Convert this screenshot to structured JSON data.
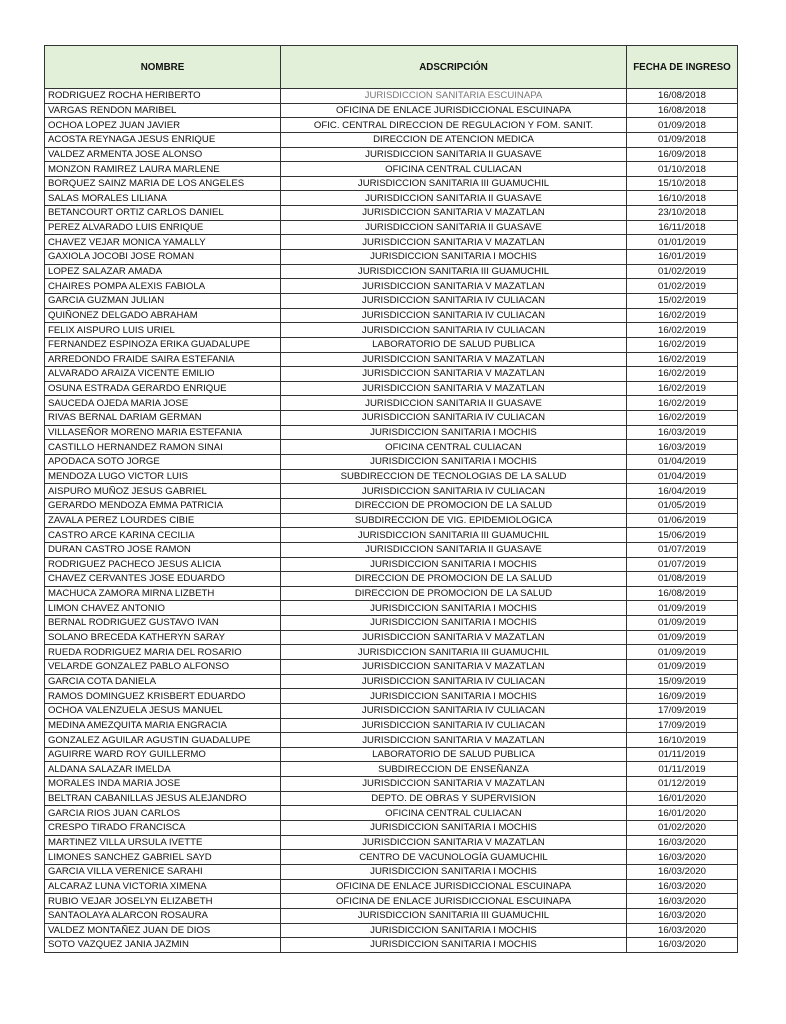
{
  "headers": {
    "nombre": "NOMBRE",
    "adscripcion": "ADSCRIPCIÓN",
    "fecha": "FECHA DE INGRESO"
  },
  "rows": [
    [
      "RODRIGUEZ ROCHA HERIBERTO",
      "JURISDICCION SANITARIA ESCUINAPA",
      "16/08/2018"
    ],
    [
      "VARGAS RENDON MARIBEL",
      "OFICINA DE ENLACE JURISDICCIONAL ESCUINAPA",
      "16/08/2018"
    ],
    [
      "OCHOA LOPEZ JUAN JAVIER",
      "OFIC. CENTRAL DIRECCION DE REGULACION Y FOM. SANIT.",
      "01/09/2018"
    ],
    [
      "ACOSTA REYNAGA JESUS ENRIQUE",
      "DIRECCION DE ATENCION MEDICA",
      "01/09/2018"
    ],
    [
      "VALDEZ ARMENTA JOSE ALONSO",
      "JURISDICCION SANITARIA II GUASAVE",
      "16/09/2018"
    ],
    [
      "MONZON RAMIREZ LAURA MARLENE",
      "OFICINA CENTRAL CULIACAN",
      "01/10/2018"
    ],
    [
      "BORQUEZ SAINZ MARIA DE LOS ANGELES",
      "JURISDICCION SANITARIA III GUAMUCHIL",
      "15/10/2018"
    ],
    [
      "SALAS MORALES LILIANA",
      "JURISDICCION SANITARIA II GUASAVE",
      "16/10/2018"
    ],
    [
      "BETANCOURT ORTIZ CARLOS DANIEL",
      "JURISDICCION SANITARIA V MAZATLAN",
      "23/10/2018"
    ],
    [
      "PEREZ ALVARADO LUIS ENRIQUE",
      "JURISDICCION SANITARIA II GUASAVE",
      "16/11/2018"
    ],
    [
      "CHAVEZ VEJAR MONICA YAMALLY",
      "JURISDICCION SANITARIA V MAZATLAN",
      "01/01/2019"
    ],
    [
      "GAXIOLA JOCOBI JOSE ROMAN",
      "JURISDICCION SANITARIA I MOCHIS",
      "16/01/2019"
    ],
    [
      "LOPEZ SALAZAR AMADA",
      "JURISDICCION SANITARIA III GUAMUCHIL",
      "01/02/2019"
    ],
    [
      "CHAIRES POMPA ALEXIS FABIOLA",
      "JURISDICCION SANITARIA V MAZATLAN",
      "01/02/2019"
    ],
    [
      "GARCIA GUZMAN JULIAN",
      "JURISDICCION SANITARIA IV CULIACAN",
      "15/02/2019"
    ],
    [
      "QUIÑONEZ DELGADO ABRAHAM",
      "JURISDICCION SANITARIA IV CULIACAN",
      "16/02/2019"
    ],
    [
      "FELIX AISPURO LUIS URIEL",
      "JURISDICCION SANITARIA IV CULIACAN",
      "16/02/2019"
    ],
    [
      "FERNANDEZ ESPINOZA ERIKA GUADALUPE",
      "LABORATORIO DE SALUD PUBLICA",
      "16/02/2019"
    ],
    [
      "ARREDONDO FRAIDE SAIRA ESTEFANIA",
      "JURISDICCION SANITARIA V MAZATLAN",
      "16/02/2019"
    ],
    [
      "ALVARADO ARAIZA VICENTE EMILIO",
      "JURISDICCION SANITARIA V MAZATLAN",
      "16/02/2019"
    ],
    [
      "OSUNA ESTRADA GERARDO ENRIQUE",
      "JURISDICCION SANITARIA V MAZATLAN",
      "16/02/2019"
    ],
    [
      "SAUCEDA OJEDA MARIA JOSE",
      "JURISDICCION SANITARIA II GUASAVE",
      "16/02/2019"
    ],
    [
      "RIVAS BERNAL DARIAM GERMAN",
      "JURISDICCION SANITARIA IV CULIACAN",
      "16/02/2019"
    ],
    [
      "VILLASEÑOR MORENO MARIA ESTEFANIA",
      "JURISDICCION SANITARIA I MOCHIS",
      "16/03/2019"
    ],
    [
      "CASTILLO HERNANDEZ RAMON SINAI",
      "OFICINA CENTRAL CULIACAN",
      "16/03/2019"
    ],
    [
      "APODACA SOTO JORGE",
      "JURISDICCION SANITARIA I MOCHIS",
      "01/04/2019"
    ],
    [
      "MENDOZA LUGO VICTOR LUIS",
      "SUBDIRECCION DE TECNOLOGIAS DE LA SALUD",
      "01/04/2019"
    ],
    [
      "AISPURO MUÑOZ JESUS GABRIEL",
      "JURISDICCION SANITARIA IV CULIACAN",
      "16/04/2019"
    ],
    [
      "GERARDO MENDOZA EMMA PATRICIA",
      "DIRECCION DE PROMOCION DE LA SALUD",
      "01/05/2019"
    ],
    [
      "ZAVALA PEREZ LOURDES CIBIE",
      "SUBDIRECCION DE VIG. EPIDEMIOLOGICA",
      "01/06/2019"
    ],
    [
      "CASTRO ARCE KARINA CECILIA",
      "JURISDICCION SANITARIA III GUAMUCHIL",
      "15/06/2019"
    ],
    [
      "DURAN CASTRO JOSE RAMON",
      "JURISDICCION SANITARIA II GUASAVE",
      "01/07/2019"
    ],
    [
      "RODRIGUEZ PACHECO JESUS ALICIA",
      "JURISDICCION SANITARIA I MOCHIS",
      "01/07/2019"
    ],
    [
      "CHAVEZ CERVANTES JOSE EDUARDO",
      "DIRECCION DE PROMOCION DE LA SALUD",
      "01/08/2019"
    ],
    [
      "MACHUCA ZAMORA MIRNA LIZBETH",
      "DIRECCION DE PROMOCION DE LA SALUD",
      "16/08/2019"
    ],
    [
      "LIMON CHAVEZ ANTONIO",
      "JURISDICCION SANITARIA I MOCHIS",
      "01/09/2019"
    ],
    [
      "BERNAL RODRIGUEZ GUSTAVO IVAN",
      "JURISDICCION SANITARIA I MOCHIS",
      "01/09/2019"
    ],
    [
      "SOLANO BRECEDA KATHERYN SARAY",
      "JURISDICCION SANITARIA V MAZATLAN",
      "01/09/2019"
    ],
    [
      "RUEDA RODRIGUEZ MARIA DEL ROSARIO",
      "JURISDICCION SANITARIA III GUAMUCHIL",
      "01/09/2019"
    ],
    [
      "VELARDE GONZALEZ PABLO ALFONSO",
      "JURISDICCION SANITARIA V MAZATLAN",
      "01/09/2019"
    ],
    [
      "GARCIA COTA DANIELA",
      "JURISDICCION SANITARIA IV CULIACAN",
      "15/09/2019"
    ],
    [
      "RAMOS DOMINGUEZ KRISBERT EDUARDO",
      "JURISDICCION SANITARIA I MOCHIS",
      "16/09/2019"
    ],
    [
      "OCHOA VALENZUELA JESUS MANUEL",
      "JURISDICCION SANITARIA IV CULIACAN",
      "17/09/2019"
    ],
    [
      "MEDINA AMEZQUITA MARIA ENGRACIA",
      "JURISDICCION SANITARIA IV CULIACAN",
      "17/09/2019"
    ],
    [
      "GONZALEZ AGUILAR AGUSTIN GUADALUPE",
      "JURISDICCION SANITARIA V MAZATLAN",
      "16/10/2019"
    ],
    [
      "AGUIRRE WARD ROY GUILLERMO",
      "LABORATORIO DE SALUD PUBLICA",
      "01/11/2019"
    ],
    [
      "ALDANA SALAZAR IMELDA",
      "SUBDIRECCION  DE ENSEÑANZA",
      "01/11/2019"
    ],
    [
      "MORALES INDA MARIA JOSE",
      "JURISDICCION SANITARIA V MAZATLAN",
      "01/12/2019"
    ],
    [
      "BELTRAN CABANILLAS JESUS ALEJANDRO",
      "DEPTO. DE OBRAS Y SUPERVISION",
      "16/01/2020"
    ],
    [
      "GARCIA RIOS JUAN CARLOS",
      "OFICINA CENTRAL CULIACAN",
      "16/01/2020"
    ],
    [
      "CRESPO TIRADO FRANCISCA",
      "JURISDICCION SANITARIA I MOCHIS",
      "01/02/2020"
    ],
    [
      "MARTINEZ VILLA URSULA IVETTE",
      "JURISDICCION SANITARIA V MAZATLAN",
      "16/03/2020"
    ],
    [
      "LIMONES SANCHEZ GABRIEL SAYD",
      "CENTRO DE VACUNOLOGÍA GUAMUCHIL",
      "16/03/2020"
    ],
    [
      "GARCIA VILLA VERENICE SARAHI",
      "JURISDICCION SANITARIA I MOCHIS",
      "16/03/2020"
    ],
    [
      "ALCARAZ LUNA VICTORIA XIMENA",
      "OFICINA DE ENLACE JURISDICCIONAL ESCUINAPA",
      "16/03/2020"
    ],
    [
      "RUBIO VEJAR JOSELYN ELIZABETH",
      "OFICINA DE ENLACE JURISDICCIONAL ESCUINAPA",
      "16/03/2020"
    ],
    [
      "SANTAOLAYA ALARCON ROSAURA",
      "JURISDICCION SANITARIA III GUAMUCHIL",
      "16/03/2020"
    ],
    [
      "VALDEZ MONTAÑEZ JUAN DE DIOS",
      "JURISDICCION SANITARIA I MOCHIS",
      "16/03/2020"
    ],
    [
      "SOTO VAZQUEZ JANIA JAZMIN",
      "JURISDICCION SANITARIA I MOCHIS",
      "16/03/2020"
    ]
  ],
  "colors": {
    "header_bg": "#e2efd9",
    "muted_text": "#777777"
  }
}
